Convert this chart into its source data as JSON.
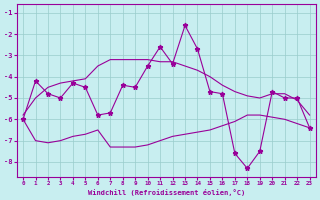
{
  "xlabel": "Windchill (Refroidissement éolien,°C)",
  "xlim": [
    -0.5,
    23.5
  ],
  "ylim": [
    -8.7,
    -0.6
  ],
  "yticks": [
    -8,
    -7,
    -6,
    -5,
    -4,
    -3,
    -2,
    -1
  ],
  "xticks": [
    0,
    1,
    2,
    3,
    4,
    5,
    6,
    7,
    8,
    9,
    10,
    11,
    12,
    13,
    14,
    15,
    16,
    17,
    18,
    19,
    20,
    21,
    22,
    23
  ],
  "bg_color": "#c8eef0",
  "line_color": "#990099",
  "grid_color": "#99cccc",
  "line1_x": [
    0,
    1,
    2,
    3,
    4,
    5,
    6,
    7,
    8,
    9,
    10,
    11,
    12,
    13,
    14,
    15,
    16,
    17,
    18,
    19,
    20,
    21,
    22,
    23
  ],
  "line1_y": [
    -6.0,
    -4.2,
    -4.8,
    -5.0,
    -4.3,
    -4.5,
    -5.8,
    -5.7,
    -4.4,
    -4.5,
    -3.5,
    -2.6,
    -3.4,
    -1.6,
    -2.7,
    -4.7,
    -4.8,
    -7.6,
    -8.3,
    -7.5,
    -4.7,
    -5.0,
    -5.0,
    -6.4
  ],
  "line2_x": [
    0,
    1,
    2,
    3,
    4,
    5,
    6,
    7,
    8,
    9,
    10,
    11,
    12,
    13,
    14,
    15,
    16,
    17,
    18,
    19,
    20,
    21,
    22,
    23
  ],
  "line2_y": [
    -5.8,
    -5.0,
    -4.5,
    -4.3,
    -4.2,
    -4.1,
    -3.5,
    -3.2,
    -3.2,
    -3.2,
    -3.2,
    -3.3,
    -3.3,
    -3.5,
    -3.7,
    -4.0,
    -4.4,
    -4.7,
    -4.9,
    -5.0,
    -4.8,
    -4.8,
    -5.1,
    -5.8
  ],
  "line3_x": [
    0,
    1,
    2,
    3,
    4,
    5,
    6,
    7,
    8,
    9,
    10,
    11,
    12,
    13,
    14,
    15,
    16,
    17,
    18,
    19,
    20,
    21,
    22,
    23
  ],
  "line3_y": [
    -6.0,
    -7.0,
    -7.1,
    -7.0,
    -6.8,
    -6.7,
    -6.5,
    -7.3,
    -7.3,
    -7.3,
    -7.2,
    -7.0,
    -6.8,
    -6.7,
    -6.6,
    -6.5,
    -6.3,
    -6.1,
    -5.8,
    -5.8,
    -5.9,
    -6.0,
    -6.2,
    -6.4
  ]
}
